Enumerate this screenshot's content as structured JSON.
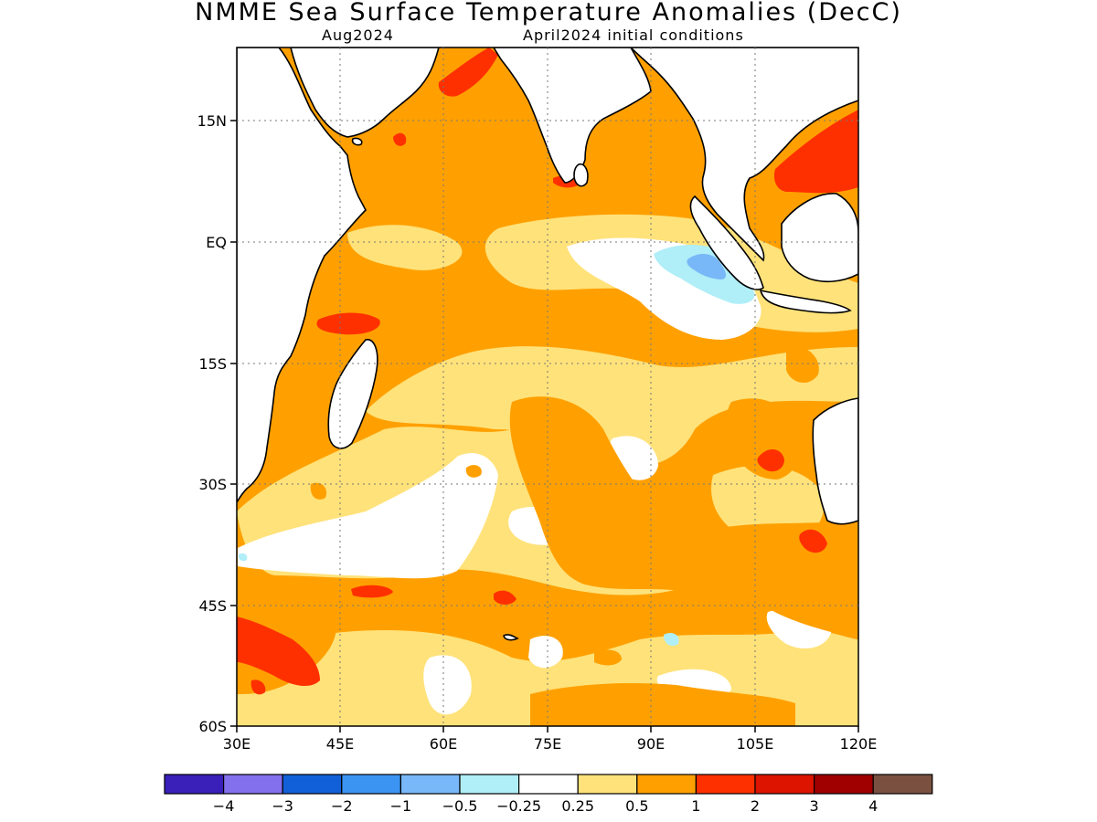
{
  "title": "NMME Sea Surface Temperature Anomalies (DecC)",
  "subtitle_left": "Aug2024",
  "subtitle_right": "April2024 initial conditions",
  "lat_labels": [
    "15N",
    "EQ",
    "15S",
    "30S",
    "45S",
    "60S"
  ],
  "lon_labels": [
    "30E",
    "45E",
    "60E",
    "75E",
    "90E",
    "105E",
    "120E"
  ],
  "colorbar": {
    "colors": [
      "#3a20b8",
      "#8270ec",
      "#1260d8",
      "#3c94f2",
      "#78b8f8",
      "#b0eef8",
      "#ffffff",
      "#ffe27a",
      "#ffa000",
      "#ff3000",
      "#dc1400",
      "#a00000",
      "#7a5040"
    ],
    "tick_labels": [
      "-4",
      "-3",
      "-2",
      "-1",
      "-0.5",
      "-0.25",
      "0.25",
      "0.5",
      "1",
      "2",
      "3",
      "4"
    ]
  },
  "map_colors": {
    "ocean_base": "#ffa000",
    "weak_warm": "#ffe27a",
    "near_zero": "#ffffff",
    "strong_warm": "#ff3000",
    "weak_cold": "#b0eef8",
    "moderate_cold": "#78b8f8",
    "coast": "#000000"
  }
}
